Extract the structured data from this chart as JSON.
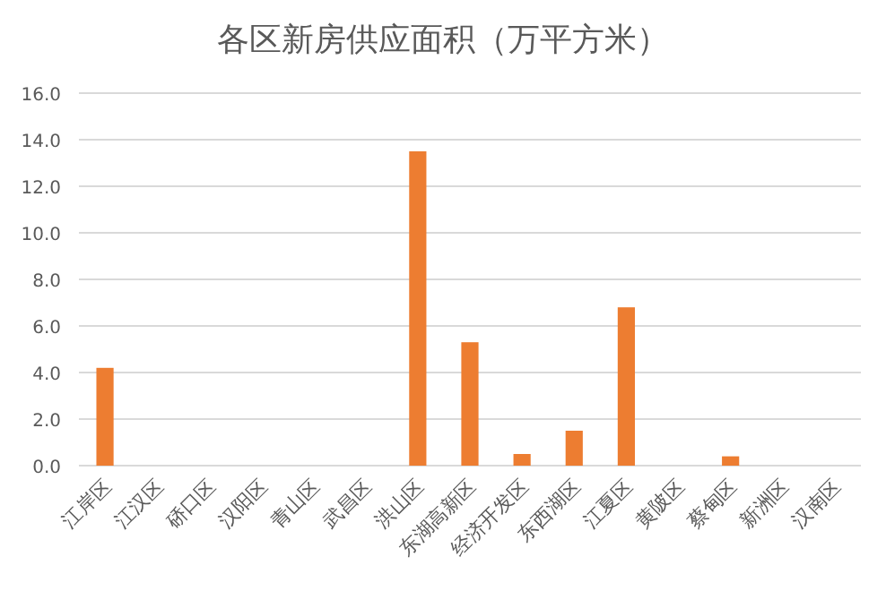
{
  "chart_data": {
    "type": "bar",
    "title": "各区新房供应面积（万平方米）",
    "categories": [
      "江岸区",
      "江汉区",
      "硚口区",
      "汉阳区",
      "青山区",
      "武昌区",
      "洪山区",
      "东湖高新区",
      "经济开发区",
      "东西湖区",
      "江夏区",
      "黄陂区",
      "蔡甸区",
      "新洲区",
      "汉南区"
    ],
    "values": [
      4.2,
      0,
      0,
      0,
      0,
      0,
      13.5,
      5.3,
      0.5,
      1.5,
      6.8,
      0,
      0.4,
      0,
      0
    ],
    "color": "#ed7d31",
    "ylim": [
      0,
      16
    ],
    "yticks": [
      {
        "value": 0,
        "label": "0.0"
      },
      {
        "value": 2,
        "label": "2.0"
      },
      {
        "value": 4,
        "label": "4.0"
      },
      {
        "value": 6,
        "label": "6.0"
      },
      {
        "value": 8,
        "label": "8.0"
      },
      {
        "value": 10,
        "label": "10.0"
      },
      {
        "value": 12,
        "label": "12.0"
      },
      {
        "value": 14,
        "label": "14.0"
      },
      {
        "value": 16,
        "label": "16.0"
      }
    ],
    "grid": "y"
  }
}
